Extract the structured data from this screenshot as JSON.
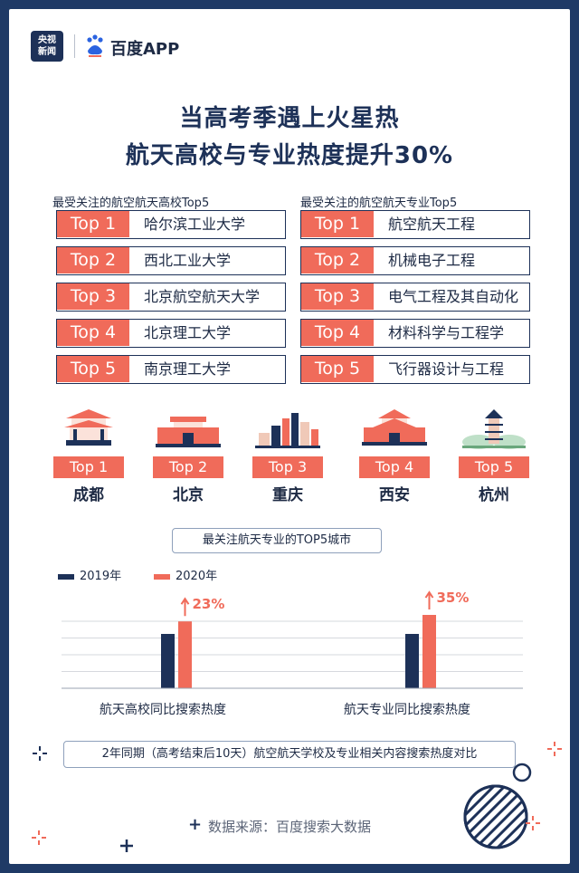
{
  "header": {
    "cctv_logo": [
      "央视",
      "新闻"
    ],
    "baidu_logo": "百度APP"
  },
  "title": {
    "line1": "当高考季遇上火星热",
    "line2": "航天高校与专业热度提升30%"
  },
  "universities": {
    "heading": "最受关注的航空航天高校Top5",
    "items": [
      {
        "rank": "Top 1",
        "name": "哈尔滨工业大学"
      },
      {
        "rank": "Top 2",
        "name": "西北工业大学"
      },
      {
        "rank": "Top 3",
        "name": "北京航空航天大学"
      },
      {
        "rank": "Top 4",
        "name": "北京理工大学"
      },
      {
        "rank": "Top 5",
        "name": "南京理工大学"
      }
    ]
  },
  "majors": {
    "heading": "最受关注的航空航天专业Top5",
    "items": [
      {
        "rank": "Top 1",
        "name": "航空航天工程"
      },
      {
        "rank": "Top 2",
        "name": "机械电子工程"
      },
      {
        "rank": "Top 3",
        "name": "电气工程及其自动化"
      },
      {
        "rank": "Top 4",
        "name": "材料科学与工程学"
      },
      {
        "rank": "Top 5",
        "name": "飞行器设计与工程"
      }
    ]
  },
  "cities": {
    "items": [
      {
        "rank": "Top 1",
        "name": "成都"
      },
      {
        "rank": "Top 2",
        "name": "北京"
      },
      {
        "rank": "Top 3",
        "name": "重庆"
      },
      {
        "rank": "Top 4",
        "name": "西安"
      },
      {
        "rank": "Top 5",
        "name": "杭州"
      }
    ],
    "caption": "最关注航天专业的TOP5城市"
  },
  "legend": {
    "y2019": "2019年",
    "y2020": "2020年"
  },
  "colors": {
    "navy": "#1d3158",
    "coral": "#f06b5a",
    "border": "#1f3a66"
  },
  "chart_data": {
    "type": "bar",
    "categories": [
      "航天高校同比搜索热度",
      "航天专业同比搜索热度"
    ],
    "series": [
      {
        "name": "2019年",
        "values": [
          100,
          100
        ]
      },
      {
        "name": "2020年",
        "values": [
          123,
          135
        ]
      }
    ],
    "annotations": [
      "23%",
      "35%"
    ]
  },
  "footnote": "2年同期（高考结束后10天）航空航天学校及专业相关内容搜索热度对比",
  "source": "数据来源：百度搜索大数据"
}
